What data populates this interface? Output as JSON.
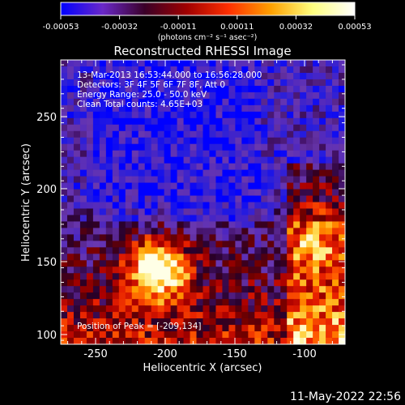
{
  "colorbar": {
    "ticks": [
      "-0.00053",
      "-0.00032",
      "-0.00011",
      "0.00011",
      "0.00032",
      "0.00053"
    ],
    "unit_label": "(photons cm⁻² s⁻¹ asec⁻²)",
    "colors": [
      "#0000ff",
      "#6a28c8",
      "#3a0028",
      "#a00000",
      "#ff3000",
      "#ffa000",
      "#ffff80",
      "#ffffff"
    ]
  },
  "plot": {
    "title": "Reconstructed RHESSI Image",
    "xlabel": "Heliocentric X (arcsec)",
    "ylabel": "Heliocentric Y (arcsec)",
    "xticks": [
      "-250",
      "-200",
      "-150",
      "-100"
    ],
    "yticks": [
      "250",
      "200",
      "150",
      "100"
    ],
    "annotations": {
      "time": "13-Mar-2013 16:53:44.000 to 16:56:28.000",
      "detectors": "Detectors: 3F 4F 5F 6F 7F 8F, Att 0",
      "energy": "Energy Range: 25.0 - 50.0 keV",
      "clean": "Clean     Total counts: 4.65E+03",
      "peak": "Position of Peak = [-209,134]"
    }
  },
  "footer": {
    "timestamp": "11-May-2022 22:56"
  }
}
